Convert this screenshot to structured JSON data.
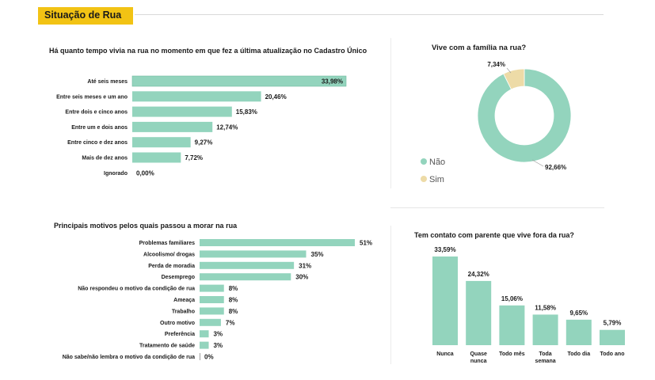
{
  "header": {
    "title": "Situação de Rua"
  },
  "colors": {
    "accent": "#f2c314",
    "bar": "#93d4bd",
    "sim": "#eddba7"
  },
  "chart_data": [
    {
      "id": "tempo-rua",
      "type": "bar",
      "orientation": "horizontal",
      "title": "Há quanto tempo vivia na rua no momento em que fez a última atualização no Cadastro Único",
      "categories": [
        "Até seis meses",
        "Entre seis meses e um ano",
        "Entre dois e cinco anos",
        "Entre um e dois anos",
        "Entre cinco e dez anos",
        "Mais de dez anos",
        "Ignorado"
      ],
      "values": [
        33.98,
        20.46,
        15.83,
        12.74,
        9.27,
        7.72,
        0.0
      ],
      "labels": [
        "33,98%",
        "20,46%",
        "15,83%",
        "12,74%",
        "9,27%",
        "7,72%",
        "0,00%"
      ]
    },
    {
      "id": "familia-rua",
      "type": "pie",
      "donut": true,
      "title": "Vive com a família na rua?",
      "categories": [
        "Não",
        "Sim"
      ],
      "values": [
        92.66,
        7.34
      ],
      "labels": [
        "92,66%",
        "7,34%"
      ],
      "legend": "left"
    },
    {
      "id": "motivos",
      "type": "bar",
      "orientation": "horizontal",
      "title": "Principais motivos pelos quais passou a morar na rua",
      "categories": [
        "Problemas familiares",
        "Alcoolismo/ drogas",
        "Perda de moradia",
        "Desemprego",
        "Não respondeu o motivo da condição de rua",
        "Ameaça",
        "Trabalho",
        "Outro motivo",
        "Preferência",
        "Tratamento de saúde",
        "Não sabe/não lembra o motivo da condição de rua"
      ],
      "values": [
        51,
        35,
        31,
        30,
        8,
        8,
        8,
        7,
        3,
        3,
        0
      ],
      "labels": [
        "51%",
        "35%",
        "31%",
        "30%",
        "8%",
        "8%",
        "8%",
        "7%",
        "3%",
        "3%",
        "0%"
      ]
    },
    {
      "id": "contato-parente",
      "type": "bar",
      "orientation": "vertical",
      "title": "Tem contato com parente que vive fora da rua?",
      "categories": [
        "Nunca",
        "Quase nunca",
        "Todo mês",
        "Toda semana",
        "Todo dia",
        "Todo ano"
      ],
      "values": [
        33.59,
        24.32,
        15.06,
        11.58,
        9.65,
        5.79
      ],
      "labels": [
        "33,59%",
        "24,32%",
        "15,06%",
        "11,58%",
        "9,65%",
        "5,79%"
      ]
    }
  ]
}
